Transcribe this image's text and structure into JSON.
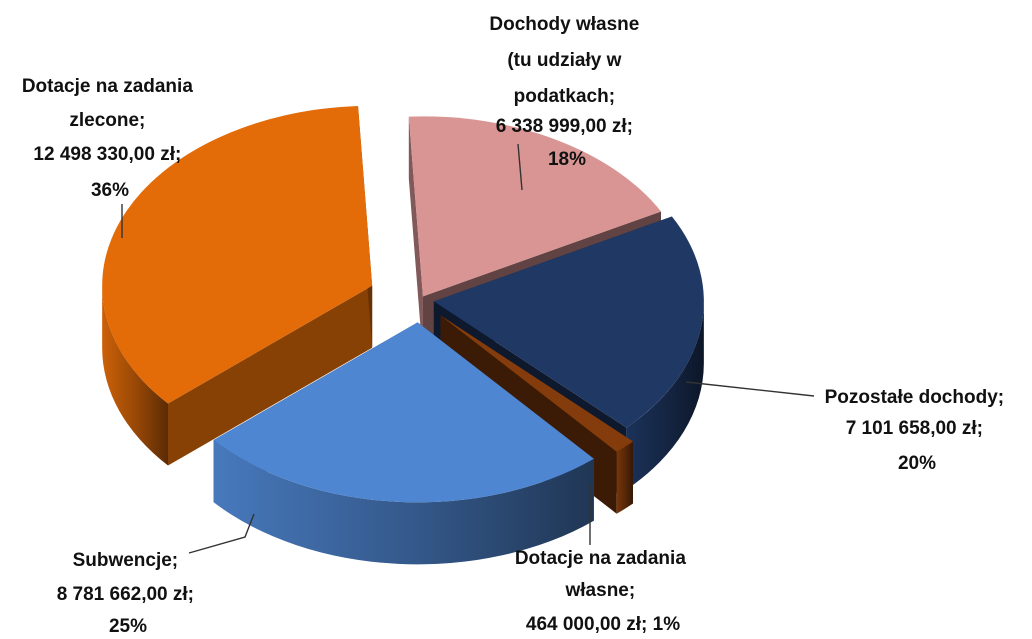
{
  "chart_data": {
    "type": "pie",
    "style": "3d-exploded",
    "slices": [
      {
        "label": "Dochody własne (tu udziały w podatkach",
        "value": 6338999.0,
        "value_text": "6 338 999,00 zł",
        "percent": "18%",
        "color": "#D99594",
        "label_lines": [
          "Dochody własne",
          "(tu udziały w",
          "podatkach;",
          "6 338 999,00 zł;",
          "18%"
        ]
      },
      {
        "label": "Pozostałe dochody",
        "value": 7101658.0,
        "value_text": "7 101 658,00 zł",
        "percent": "20%",
        "color": "#1F3864",
        "label_lines": [
          "Pozostałe dochody;",
          "7 101 658,00 zł;",
          "20%"
        ]
      },
      {
        "label": "Dotacje na zadania własne",
        "value": 464000.0,
        "value_text": "464 000,00 zł",
        "percent": "1%",
        "color": "#843C0C",
        "label_lines": [
          "Dotacje na zadania",
          "własne;",
          "464 000,00 zł; 1%"
        ]
      },
      {
        "label": "Subwencje",
        "value": 8781662.0,
        "value_text": "8 781 662,00 zł",
        "percent": "25%",
        "color": "#4F86D1",
        "label_lines": [
          "Subwencje;",
          "8 781 662,00 zł;",
          "25%"
        ]
      },
      {
        "label": "Dotacje na zadania zlecone",
        "value": 12498330.0,
        "value_text": "12 498 330,00 zł",
        "percent": "36%",
        "color": "#E36C09",
        "label_lines": [
          "Dotacje na zadania",
          "zlecone;",
          "12 498 330,00 zł;",
          "36%"
        ]
      }
    ]
  }
}
